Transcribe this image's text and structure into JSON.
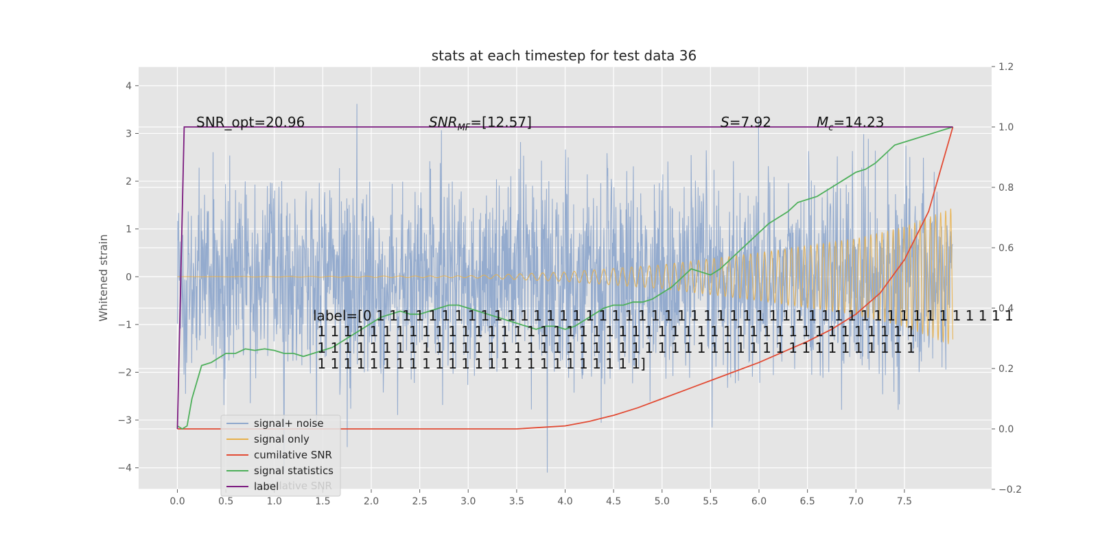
{
  "chart_data": {
    "type": "line",
    "title": "stats at each timestep for test data 36",
    "xlabel": "",
    "ylabel": "Whitened strain",
    "y2label": "",
    "xlim": [
      -0.4,
      8.4
    ],
    "ylim": [
      -4.45,
      4.4
    ],
    "y2lim": [
      -0.2,
      1.2
    ],
    "x_ticks": [
      "0.0",
      "0.5",
      "1.0",
      "1.5",
      "2.0",
      "2.5",
      "3.0",
      "3.5",
      "4.0",
      "4.5",
      "5.0",
      "5.5",
      "6.0",
      "6.5",
      "7.0",
      "7.5"
    ],
    "y_ticks": [
      "4",
      "3",
      "2",
      "1",
      "0",
      "−1",
      "−2",
      "−3",
      "−4"
    ],
    "y2_ticks": [
      "1.2",
      "1.0",
      "0.8",
      "0.6",
      "0.4",
      "0.2",
      "0.0",
      "−0.2"
    ],
    "grid": true,
    "background": "#e5e5e5",
    "legend_position": "lower-left",
    "series": [
      {
        "name": "signal+ noise",
        "axis": "left",
        "color": "#8fa8cc",
        "description": "dense noise band, approx ±2 std with spikes to ±4",
        "x_range": [
          0.0,
          8.0
        ]
      },
      {
        "name": "signal only",
        "axis": "left",
        "color": "#e8b04a",
        "description": "chirp oscillation, amplitude grows from 0 to about 1.5",
        "x": [
          0.0,
          3.0,
          4.0,
          5.0,
          6.0,
          7.0,
          7.5,
          8.0
        ],
        "amplitude": [
          0.0,
          0.02,
          0.1,
          0.25,
          0.5,
          0.8,
          1.05,
          1.45
        ]
      },
      {
        "name": "cumilative SNR",
        "axis": "right",
        "color": "#e24a33",
        "x": [
          0.0,
          3.5,
          3.75,
          4.0,
          4.25,
          4.5,
          4.75,
          5.0,
          5.25,
          5.5,
          5.75,
          6.0,
          6.25,
          6.5,
          6.75,
          7.0,
          7.25,
          7.5,
          7.75,
          8.0
        ],
        "y": [
          0.0,
          0.0,
          0.005,
          0.01,
          0.025,
          0.045,
          0.07,
          0.1,
          0.13,
          0.16,
          0.19,
          0.22,
          0.255,
          0.29,
          0.33,
          0.38,
          0.45,
          0.56,
          0.72,
          1.0
        ]
      },
      {
        "name": "signal statistics",
        "axis": "right",
        "color": "#4caf59",
        "x": [
          0.0,
          0.05,
          0.1,
          0.15,
          0.25,
          0.35,
          0.5,
          0.6,
          0.7,
          0.8,
          0.9,
          1.0,
          1.1,
          1.2,
          1.3,
          1.4,
          1.5,
          1.6,
          1.7,
          1.8,
          1.9,
          2.0,
          2.1,
          2.2,
          2.3,
          2.4,
          2.5,
          2.6,
          2.7,
          2.8,
          2.9,
          3.0,
          3.1,
          3.2,
          3.3,
          3.4,
          3.5,
          3.6,
          3.7,
          3.8,
          3.9,
          4.0,
          4.1,
          4.2,
          4.3,
          4.4,
          4.5,
          4.6,
          4.7,
          4.8,
          4.9,
          5.0,
          5.1,
          5.2,
          5.3,
          5.4,
          5.5,
          5.6,
          5.7,
          5.8,
          5.9,
          6.0,
          6.1,
          6.2,
          6.3,
          6.4,
          6.5,
          6.6,
          6.7,
          6.8,
          6.9,
          7.0,
          7.1,
          7.2,
          7.3,
          7.4,
          7.5,
          7.6,
          7.7,
          7.8,
          7.9,
          8.0
        ],
        "y": [
          0.01,
          0.0,
          0.01,
          0.1,
          0.21,
          0.22,
          0.25,
          0.25,
          0.265,
          0.26,
          0.265,
          0.26,
          0.25,
          0.25,
          0.24,
          0.25,
          0.26,
          0.27,
          0.29,
          0.31,
          0.33,
          0.35,
          0.37,
          0.38,
          0.39,
          0.38,
          0.38,
          0.39,
          0.4,
          0.41,
          0.41,
          0.4,
          0.39,
          0.38,
          0.37,
          0.36,
          0.35,
          0.34,
          0.33,
          0.34,
          0.34,
          0.33,
          0.34,
          0.36,
          0.38,
          0.4,
          0.41,
          0.41,
          0.42,
          0.42,
          0.43,
          0.45,
          0.47,
          0.5,
          0.53,
          0.52,
          0.51,
          0.53,
          0.56,
          0.59,
          0.62,
          0.65,
          0.68,
          0.7,
          0.72,
          0.75,
          0.76,
          0.77,
          0.79,
          0.81,
          0.83,
          0.85,
          0.86,
          0.88,
          0.91,
          0.94,
          0.95,
          0.96,
          0.97,
          0.98,
          0.99,
          1.0
        ]
      },
      {
        "name": "label",
        "axis": "right",
        "color": "#7b1a7f",
        "x": [
          0.0,
          0.07,
          8.0
        ],
        "y": [
          0.0,
          1.0,
          1.0
        ]
      }
    ],
    "annotations": [
      {
        "text": "SNR_opt=20.96"
      },
      {
        "text": "SNR_MF=[12.57]"
      },
      {
        "text": "S=7.92"
      },
      {
        "text": "M_c=14.23"
      },
      {
        "lines": [
          "label=[0 1 1 1 1 1 1 1 1 1 1 1 1 1 1 1 1 1 1 1 1 1 1 1 1 1 1 1 1 1 1 1 1 1 1 1 1 1 1 1 1 1 1 1 1 1 1 1 1 1",
          " 1 1 1 1 1 1 1 1 1 1 1 1 1 1 1 1 1 1 1 1 1 1 1 1 1 1 1 1 1 1 1 1 1 1 1 1 1 1 1 1 1 1 1 1 1 1",
          " 1 1 1 1 1 1 1 1 1 1 1 1 1 1 1 1 1 1 1 1 1 1 1 1 1 1 1 1 1 1 1 1 1 1 1 1 1 1 1 1 1 1 1 1 1 1",
          " 1 1 1 1 1 1 1 1 1 1 1 1 1 1 1 1 1 1 1 1 1 1 1 1 1]"
        ]
      }
    ],
    "legend": [
      "signal+ noise",
      "signal only",
      "cumilative SNR",
      "signal statistics",
      "label"
    ],
    "legend_ghost_text": "cumilative SNR"
  }
}
